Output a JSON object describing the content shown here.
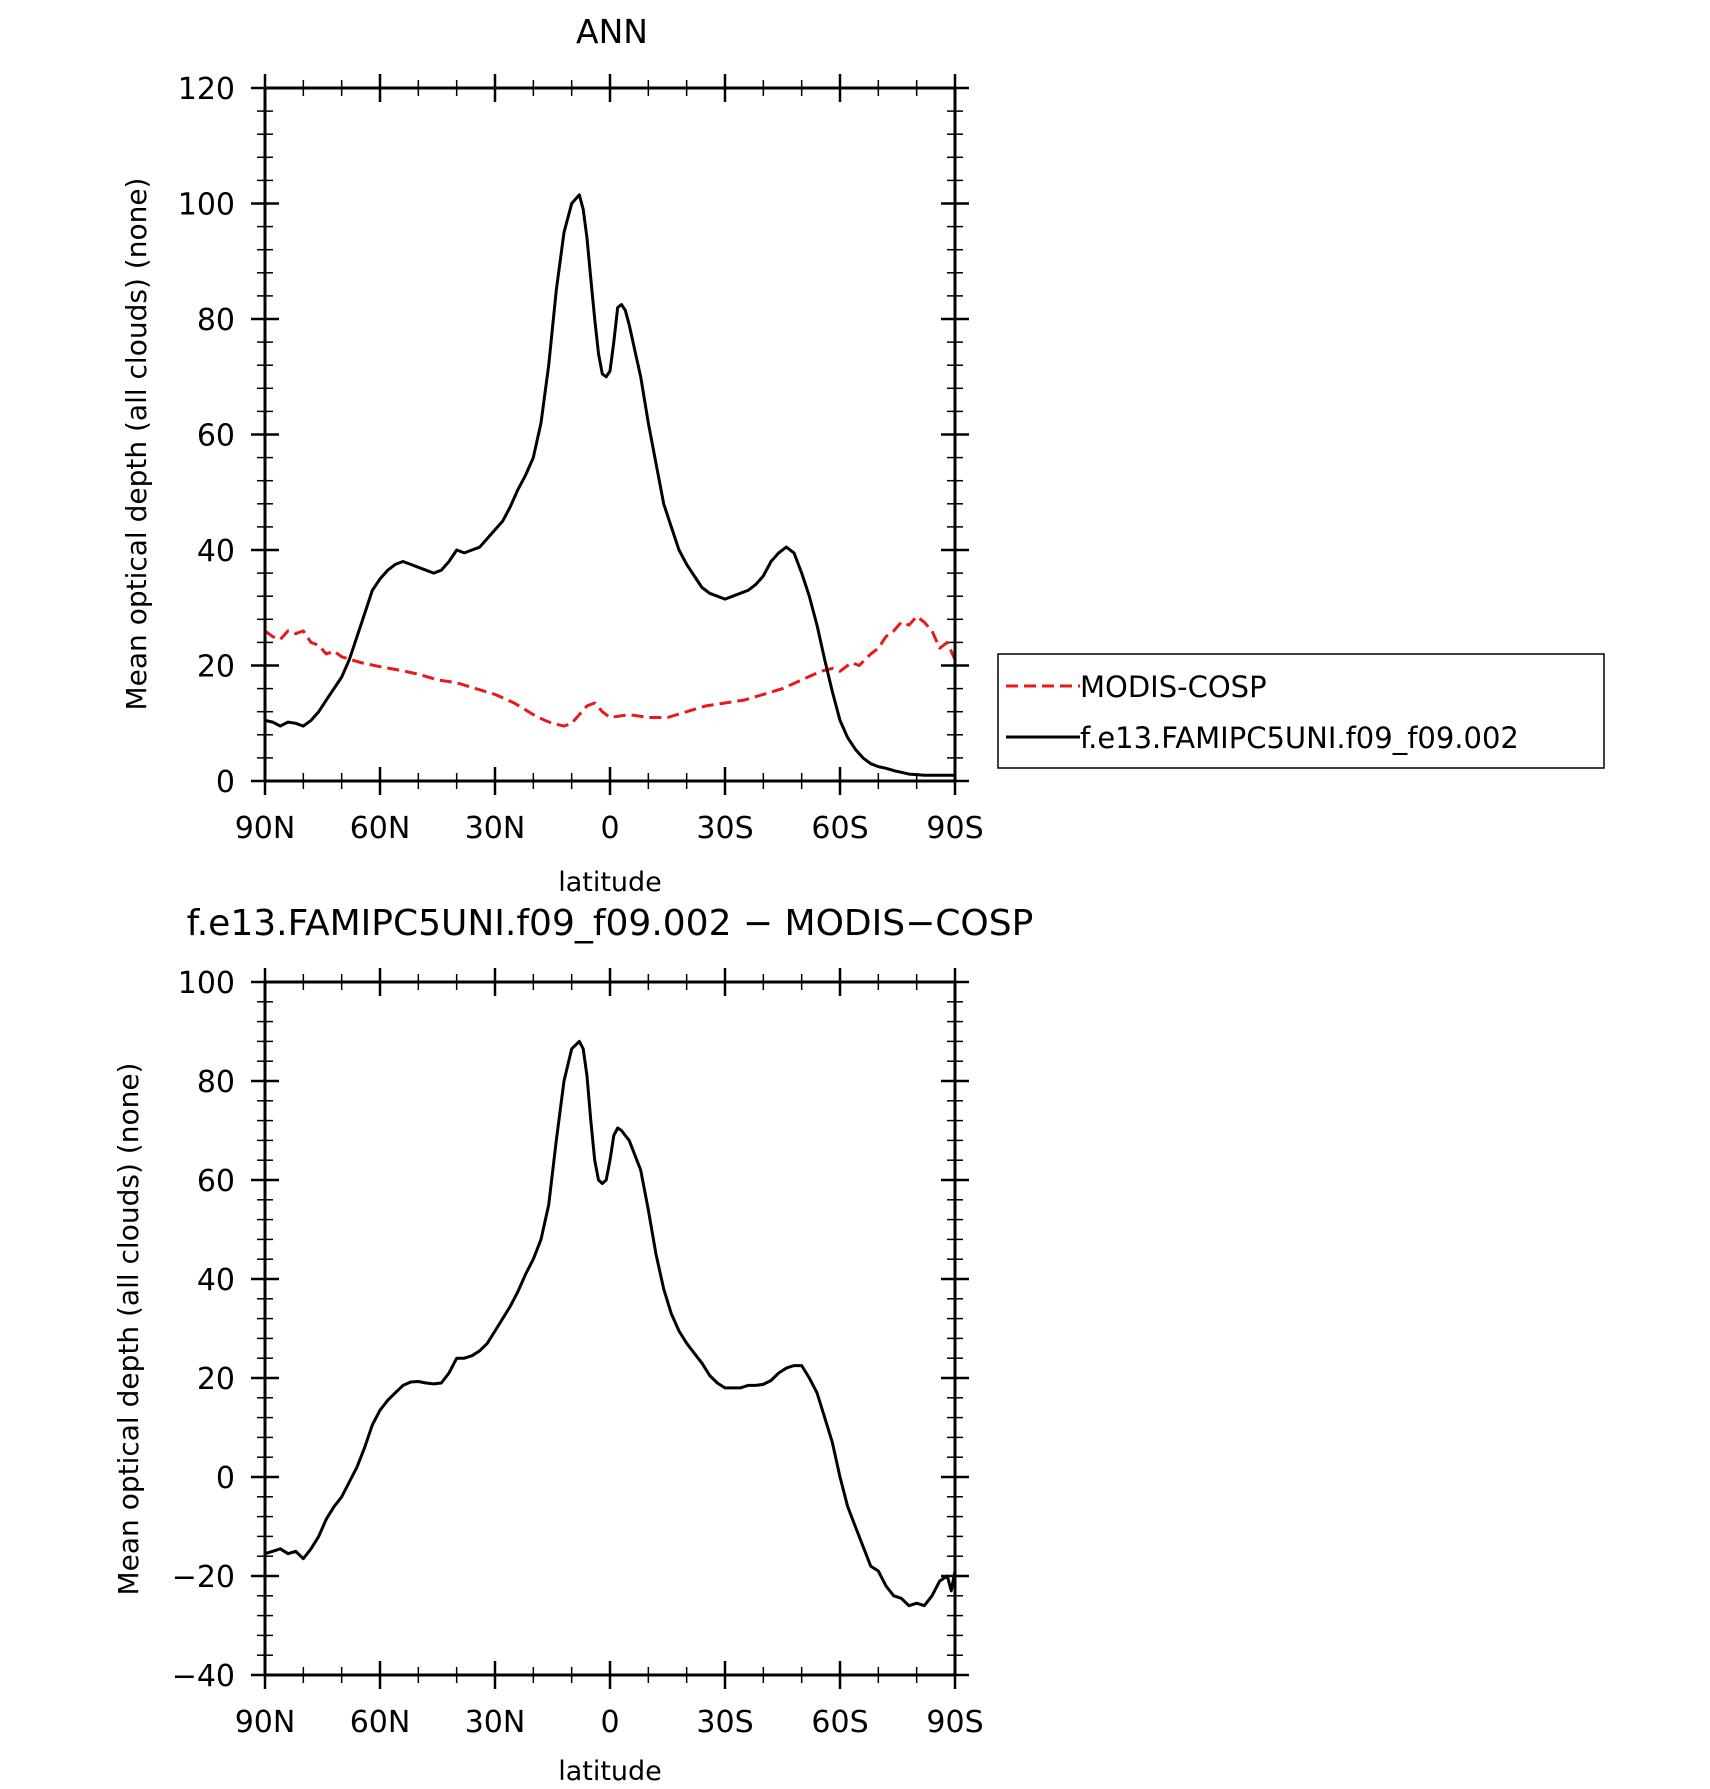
{
  "chart_data": [
    {
      "type": "line",
      "title": "ANN",
      "xlabel": "latitude",
      "ylabel": "Mean optical depth (all clouds) (none)",
      "xlim": [
        90,
        -90
      ],
      "ylim": [
        0,
        120
      ],
      "yticks": [
        0,
        20,
        40,
        60,
        80,
        100,
        120
      ],
      "xticks": [
        90,
        60,
        30,
        0,
        -30,
        -60,
        -90
      ],
      "xtick_labels": [
        "90N",
        "60N",
        "30N",
        "0",
        "30S",
        "60S",
        "90S"
      ],
      "grid": false,
      "legend_position": "right",
      "series": [
        {
          "name": "MODIS-COSP",
          "color": "#e8191c",
          "style": "dashed",
          "x": [
            90,
            88,
            86,
            84,
            82,
            80,
            78,
            76,
            74,
            72,
            70,
            65,
            60,
            55,
            50,
            45,
            40,
            35,
            30,
            25,
            20,
            17,
            15,
            12,
            10,
            8,
            6,
            4,
            2,
            0,
            -5,
            -10,
            -15,
            -20,
            -25,
            -30,
            -35,
            -40,
            -45,
            -50,
            -55,
            -58,
            -60,
            -63,
            -65,
            -68,
            -70,
            -72,
            -74,
            -76,
            -78,
            -80,
            -82,
            -84,
            -86,
            -88,
            -90
          ],
          "y": [
            26,
            25,
            24.5,
            26,
            25.5,
            26,
            24,
            23.5,
            22,
            22.5,
            21.5,
            20.5,
            19.8,
            19.2,
            18.5,
            17.5,
            17,
            16,
            15,
            13.5,
            11.5,
            10.5,
            10,
            9.5,
            10,
            11.5,
            13,
            13.5,
            12,
            11,
            11.5,
            11,
            11,
            12,
            13,
            13.5,
            14,
            15,
            16,
            17.5,
            19,
            19.5,
            19,
            20.5,
            20,
            22,
            23,
            25,
            26,
            27.5,
            27,
            28.5,
            27.5,
            26,
            23,
            24,
            21
          ]
        },
        {
          "name": "f.e13.FAMIPC5UNI.f09_f09.002",
          "color": "#000000",
          "style": "solid",
          "x": [
            90,
            88,
            86,
            84,
            82,
            80,
            78,
            76,
            74,
            72,
            70,
            68,
            66,
            64,
            62,
            60,
            58,
            56,
            54,
            52,
            50,
            48,
            46,
            44,
            42,
            40,
            38,
            36,
            34,
            32,
            30,
            28,
            26,
            24,
            22,
            20,
            18,
            16,
            14,
            12,
            10,
            8,
            7,
            6,
            5,
            4,
            3,
            2,
            1,
            0,
            -1,
            -2,
            -3,
            -4,
            -5,
            -6,
            -8,
            -10,
            -12,
            -14,
            -16,
            -18,
            -20,
            -22,
            -24,
            -26,
            -28,
            -30,
            -32,
            -34,
            -36,
            -38,
            -40,
            -42,
            -44,
            -46,
            -48,
            -50,
            -52,
            -54,
            -56,
            -58,
            -60,
            -62,
            -64,
            -66,
            -68,
            -70,
            -72,
            -74,
            -76,
            -78,
            -80,
            -82,
            -84,
            -86,
            -88,
            -90
          ],
          "y": [
            10.5,
            10.2,
            9.5,
            10.2,
            10,
            9.5,
            10.5,
            12,
            14,
            16,
            18,
            21,
            25,
            29,
            33,
            35,
            36.5,
            37.5,
            38,
            37.5,
            37,
            36.5,
            36,
            36.5,
            38,
            40,
            39.5,
            40,
            40.5,
            42,
            43.5,
            45,
            47.5,
            50.5,
            53,
            56,
            62,
            72,
            85,
            95,
            100,
            101.5,
            99,
            94,
            87,
            80,
            74,
            70.5,
            70,
            71,
            76,
            82,
            82.5,
            81.5,
            79,
            76,
            70,
            62,
            55,
            48,
            44,
            40,
            37.5,
            35.5,
            33.5,
            32.5,
            32,
            31.5,
            32,
            32.5,
            33,
            34,
            35.5,
            38,
            39.5,
            40.5,
            39.5,
            36,
            32,
            27,
            21,
            15.5,
            10.5,
            7.5,
            5.5,
            4,
            3,
            2.5,
            2.2,
            1.8,
            1.5,
            1.2,
            1.1,
            1,
            1,
            1,
            1,
            1
          ]
        }
      ]
    },
    {
      "type": "line",
      "title": "f.e13.FAMIPC5UNI.f09_f09.002 − MODIS−COSP",
      "xlabel": "latitude",
      "ylabel": "Mean optical depth (all clouds) (none)",
      "xlim": [
        90,
        -90
      ],
      "ylim": [
        -40,
        100
      ],
      "yticks": [
        -40,
        -20,
        0,
        20,
        40,
        60,
        80,
        100
      ],
      "xticks": [
        90,
        60,
        30,
        0,
        -30,
        -60,
        -90
      ],
      "xtick_labels": [
        "90N",
        "60N",
        "30N",
        "0",
        "30S",
        "60S",
        "90S"
      ],
      "grid": false,
      "series": [
        {
          "color": "#000000",
          "style": "solid",
          "x": [
            90,
            88,
            86,
            84,
            82,
            80,
            78,
            76,
            74,
            72,
            70,
            68,
            66,
            64,
            62,
            60,
            58,
            56,
            54,
            52,
            50,
            48,
            46,
            44,
            42,
            40,
            38,
            36,
            34,
            32,
            30,
            28,
            26,
            24,
            22,
            20,
            18,
            16,
            14,
            12,
            10,
            8,
            7,
            6,
            5,
            4,
            3,
            2,
            1,
            0,
            -1,
            -2,
            -3,
            -4,
            -5,
            -6,
            -8,
            -10,
            -12,
            -14,
            -16,
            -18,
            -20,
            -22,
            -24,
            -26,
            -28,
            -30,
            -32,
            -34,
            -36,
            -38,
            -40,
            -42,
            -44,
            -46,
            -48,
            -50,
            -52,
            -54,
            -56,
            -58,
            -60,
            -62,
            -64,
            -66,
            -68,
            -70,
            -72,
            -74,
            -76,
            -78,
            -80,
            -82,
            -84,
            -86,
            -88,
            -89,
            -90
          ],
          "y": [
            -15.5,
            -15,
            -14.5,
            -15.5,
            -15,
            -16.5,
            -14.5,
            -12,
            -8.5,
            -6,
            -4,
            -1,
            2,
            6,
            10.5,
            13.5,
            15.5,
            17,
            18.5,
            19.2,
            19.3,
            19,
            18.8,
            19,
            21,
            24,
            24,
            24.5,
            25.5,
            27,
            29.5,
            32,
            34.5,
            37.5,
            41,
            44,
            48,
            55,
            68,
            80,
            86.5,
            88,
            86.5,
            81,
            72,
            64,
            60,
            59.3,
            60,
            64,
            69,
            70.5,
            70,
            69,
            68,
            66,
            62,
            54,
            45,
            38,
            33,
            29.5,
            27,
            25,
            23,
            20.5,
            19,
            18,
            18,
            18,
            18.5,
            18.5,
            18.7,
            19.5,
            21,
            22,
            22.5,
            22.5,
            20,
            17,
            12,
            7,
            0,
            -6,
            -10,
            -14,
            -18,
            -19,
            -22,
            -24,
            -24.5,
            -26,
            -25.5,
            -26,
            -24,
            -21,
            -20,
            -23,
            -19
          ]
        }
      ]
    }
  ]
}
